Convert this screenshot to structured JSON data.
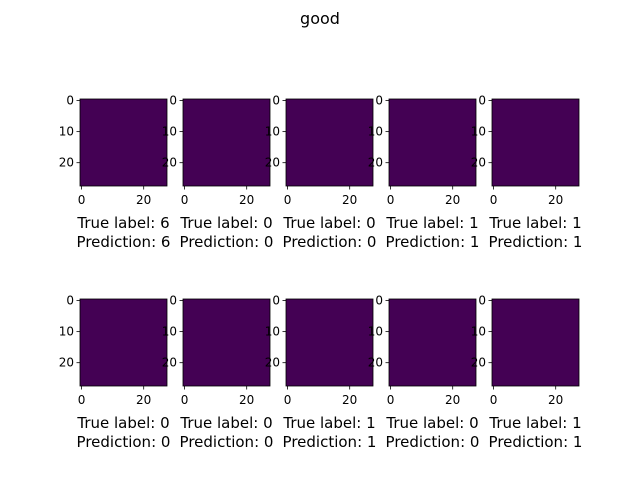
{
  "figure": {
    "title": "good"
  },
  "chart_data": {
    "type": "image-grid",
    "title": "good",
    "rows": 2,
    "cols": 5,
    "image_size": [
      28,
      28
    ],
    "x_ticks": [
      "0",
      "20"
    ],
    "y_ticks": [
      "0",
      "10",
      "20"
    ],
    "colormap": [
      "#440154",
      "#3b528b",
      "#21918c",
      "#5ec962",
      "#fde725"
    ],
    "panels": [
      {
        "digit": 6,
        "line1": "True label: 6",
        "line2": "Prediction: 6"
      },
      {
        "digit": 0,
        "line1": "True label: 0",
        "line2": "Prediction: 0"
      },
      {
        "digit": 0,
        "line1": "True label: 0",
        "line2": "Prediction: 0"
      },
      {
        "digit": 1,
        "line1": "True label: 1",
        "line2": "Prediction: 1"
      },
      {
        "digit": 1,
        "line1": "True label: 1",
        "line2": "Prediction: 1"
      },
      {
        "digit": 0,
        "line1": "True label: 0",
        "line2": "Prediction: 0"
      },
      {
        "digit": 0,
        "line1": "True label: 0",
        "line2": "Prediction: 0"
      },
      {
        "digit": 1,
        "line1": "True label: 1",
        "line2": "Prediction: 1"
      },
      {
        "digit": 0,
        "line1": "True label: 0",
        "line2": "Prediction: 0"
      },
      {
        "digit": 1,
        "line1": "True label: 1",
        "line2": "Prediction: 1"
      }
    ]
  }
}
